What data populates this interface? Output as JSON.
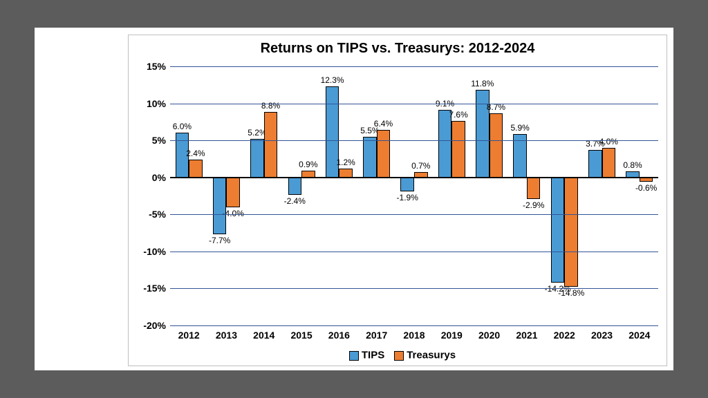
{
  "chart": {
    "type": "bar",
    "title": "Returns on TIPS vs. Treasurys: 2012-2024",
    "title_fontsize": 20,
    "background_color": "#ffffff",
    "categories": [
      "2012",
      "2013",
      "2014",
      "2015",
      "2016",
      "2017",
      "2018",
      "2019",
      "2020",
      "2021",
      "2022",
      "2023",
      "2024"
    ],
    "series": [
      {
        "name": "TIPS",
        "color": "#4a9bd4",
        "values": [
          6.0,
          -7.7,
          5.2,
          -2.4,
          12.3,
          5.5,
          -1.9,
          9.1,
          11.8,
          5.9,
          -14.2,
          3.7,
          0.8
        ],
        "labels": [
          "6.0%",
          "-7.7%",
          "5.2%",
          "-2.4%",
          "12.3%",
          "5.5%",
          "-1.9%",
          "9.1%",
          "11.8%",
          "5.9%",
          "-14.2%",
          "3.7%",
          "0.8%"
        ]
      },
      {
        "name": "Treasurys",
        "color": "#ed7d31",
        "values": [
          2.4,
          -4.0,
          8.8,
          0.9,
          1.2,
          6.4,
          0.7,
          7.6,
          8.7,
          -2.9,
          -14.8,
          4.0,
          -0.6
        ],
        "labels": [
          "2.4%",
          "-4.0%",
          "8.8%",
          "0.9%",
          "1.2%",
          "6.4%",
          "0.7%",
          "7.6%",
          "8.7%",
          "-2.9%",
          "-14.8%",
          "4.0%",
          "-0.6%"
        ]
      }
    ],
    "ylim": [
      -20,
      15
    ],
    "ytick_step": 5,
    "ytick_labels": [
      "-20%",
      "-15%",
      "-10%",
      "-5%",
      "0%",
      "5%",
      "10%",
      "15%"
    ],
    "grid_color": "#305496",
    "axis_color": "#000000",
    "border_color": "#000000",
    "bar_width": 0.36,
    "label_fontsize": 12,
    "tick_fontsize": 14,
    "legend_fontsize": 15
  },
  "page_background": "#5c5c5c"
}
